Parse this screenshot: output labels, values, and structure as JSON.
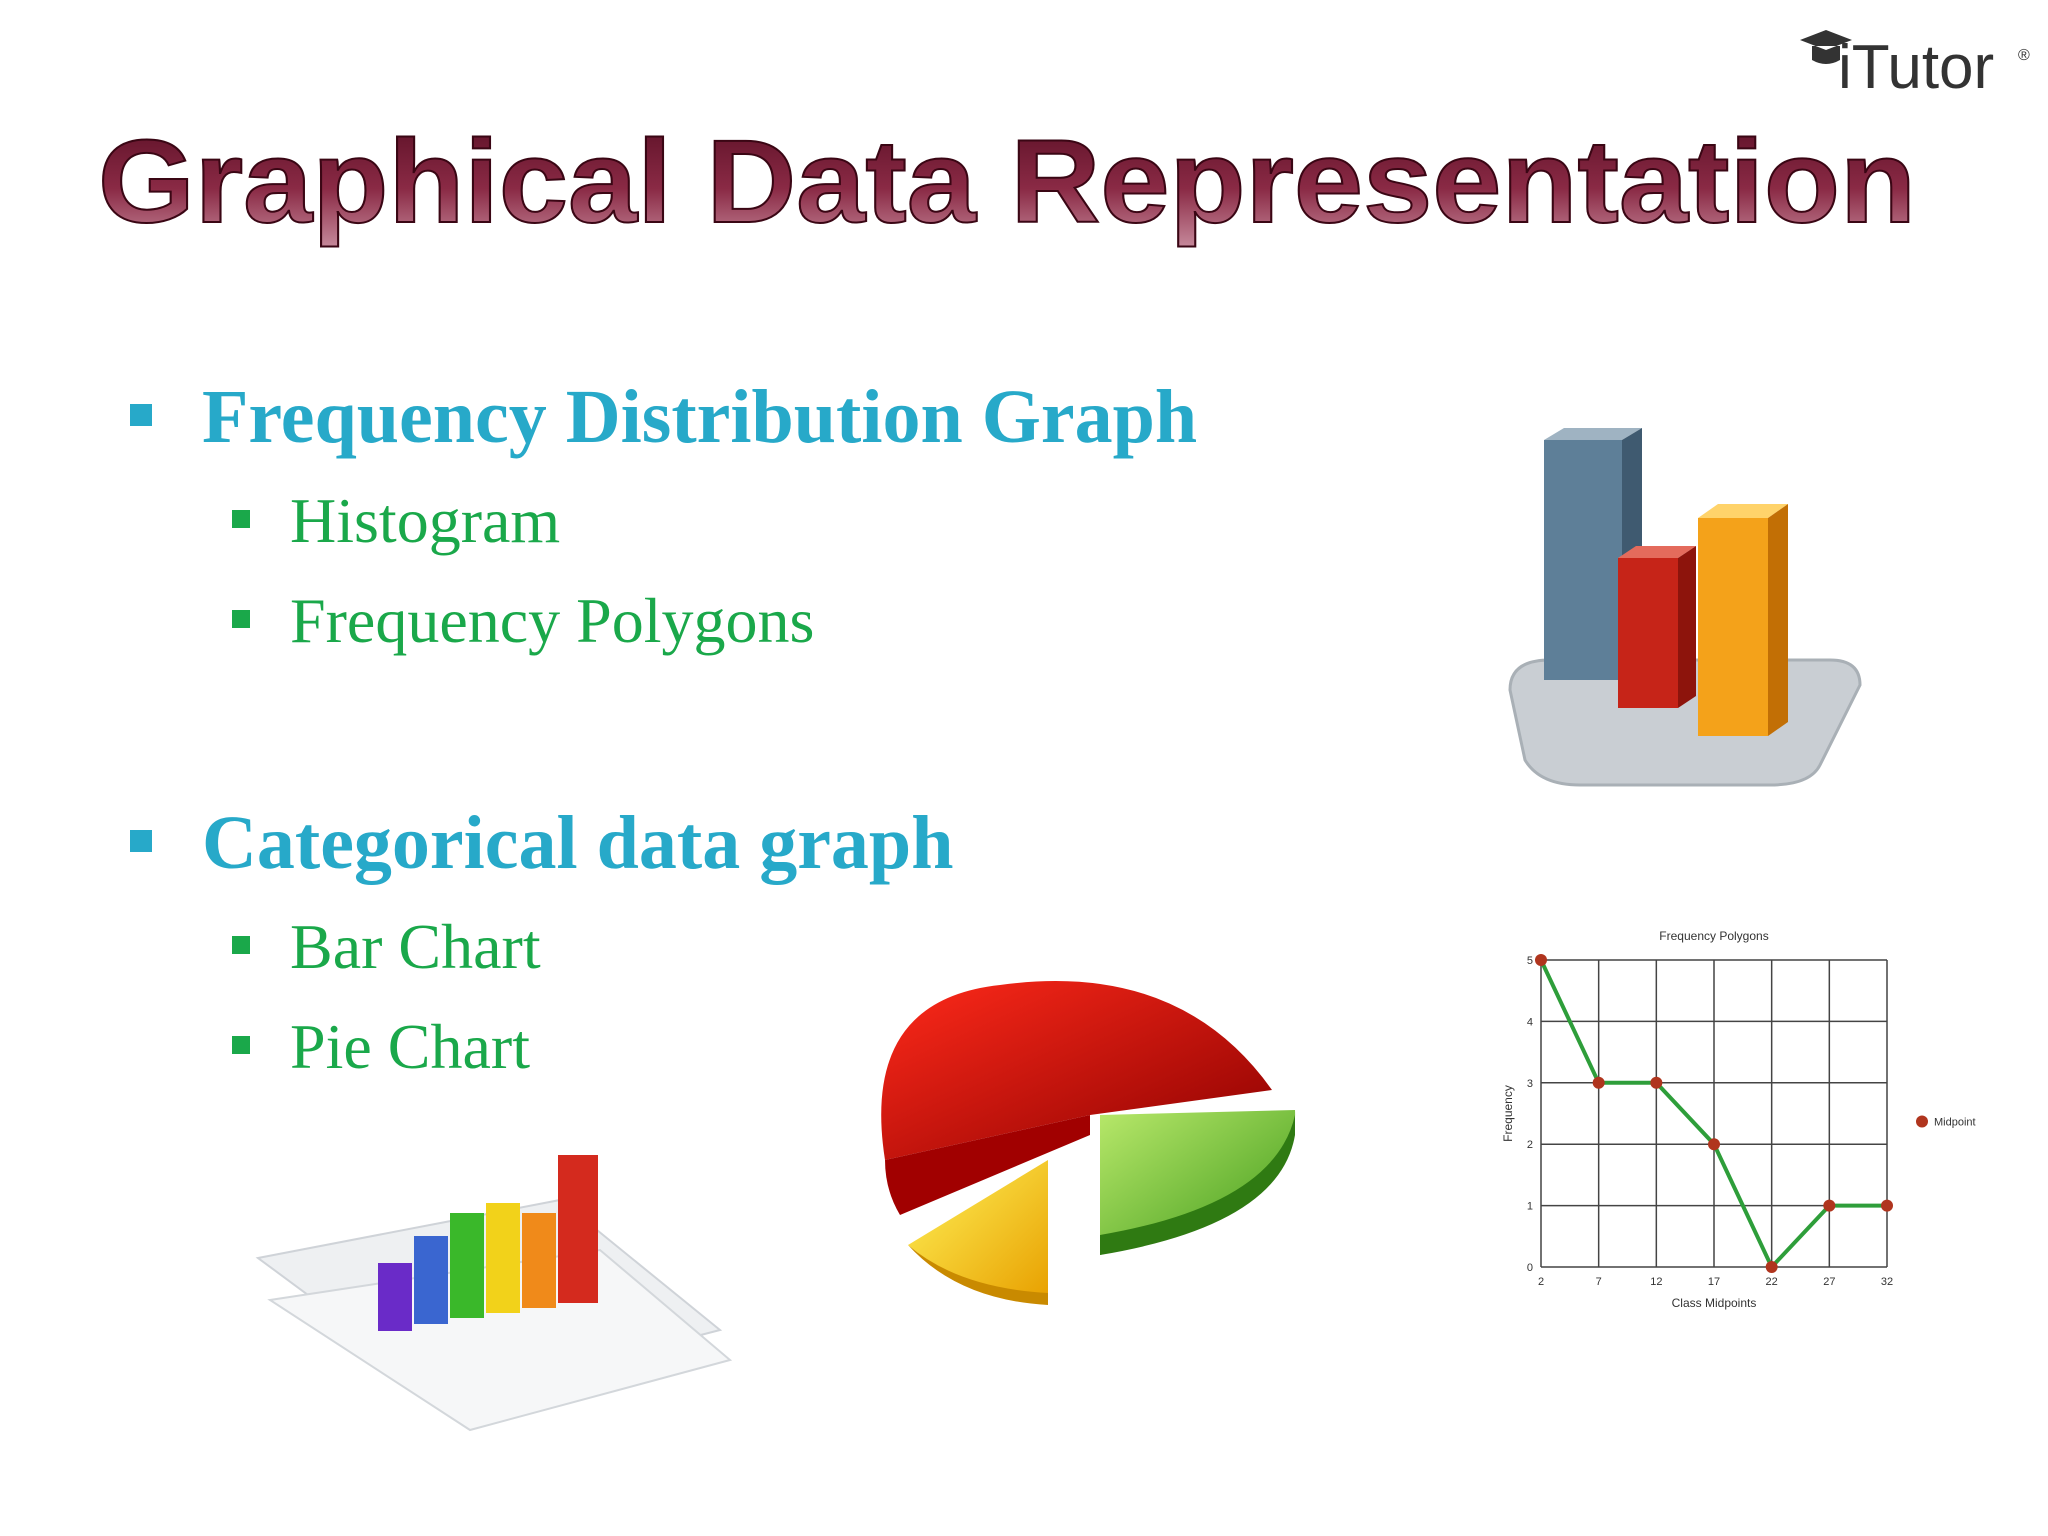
{
  "header": {
    "logo": "iTutor",
    "logo_mark": "®",
    "title": "Graphical Data Representation"
  },
  "bullets": [
    {
      "text": "Frequency Distribution Graph",
      "items": [
        "Histogram",
        "Frequency Polygons"
      ]
    },
    {
      "text": "Categorical data graph",
      "items": [
        "Bar Chart",
        "Pie Chart"
      ]
    }
  ],
  "chart_data": {
    "type": "line",
    "title": "Frequency Polygons",
    "x_label": "Class Midpoints",
    "y_label": "Frequency",
    "x": [
      2,
      7,
      12,
      17,
      22,
      27,
      32
    ],
    "series": [
      {
        "name": "Midpoint",
        "color": "#2e9e3a",
        "marker_color": "#b0351e",
        "values": [
          5,
          3,
          3,
          2,
          0,
          1,
          1
        ]
      }
    ],
    "xlim": [
      2,
      32
    ],
    "ylim": [
      0,
      5
    ],
    "xticks": [
      2,
      7,
      12,
      17,
      22,
      27,
      32
    ],
    "yticks": [
      0,
      1,
      2,
      3,
      4,
      5
    ],
    "grid": true,
    "legend": "right"
  }
}
